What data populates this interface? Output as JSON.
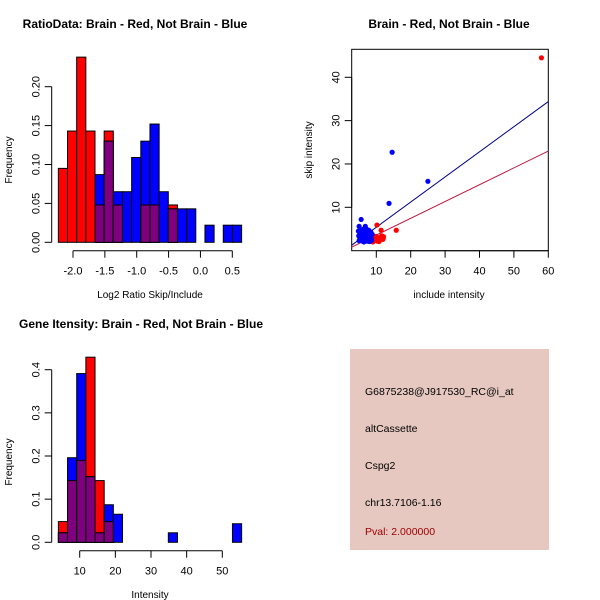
{
  "chart_data": [
    {
      "type": "bar",
      "title": "RatioData: Brain - Red, Not Brain - Blue",
      "xlabel": "Log2 Ratio Skip/Include",
      "ylabel": "Frequency",
      "bin_start": -2.23,
      "bin_width": 0.1438,
      "xticks": [
        -2.0,
        -1.5,
        -1.0,
        -0.5,
        0.0,
        0.5
      ],
      "xtick_labels": [
        "-2.0",
        "-1.5",
        "-1.0",
        "-0.5",
        "0.0",
        "0.5"
      ],
      "yticks": [
        0,
        0.05,
        0.1,
        0.15,
        0.2
      ],
      "ytick_labels": [
        "0.00",
        "0.05",
        "0.10",
        "0.15",
        "0.20"
      ],
      "ylim": [
        0,
        0.24
      ],
      "series": [
        {
          "name": "Brain",
          "color": "#ff0000",
          "values": [
            0.095,
            0.143,
            0.238,
            0.143,
            0.048,
            0.143,
            0.048,
            0,
            0,
            0.048,
            0.048,
            0,
            0.048,
            0,
            0,
            0,
            0,
            0,
            0,
            0
          ]
        },
        {
          "name": "Not Brain",
          "color": "#0000ff",
          "values": [
            0,
            0,
            0,
            0,
            0.087,
            0.13,
            0.065,
            0.065,
            0.109,
            0.13,
            0.152,
            0.065,
            0.043,
            0.043,
            0.043,
            0,
            0.022,
            0,
            0.022,
            0.022
          ]
        }
      ],
      "overlap_color": "#7f007f"
    },
    {
      "type": "scatter",
      "title": "Brain - Red, Not Brain - Blue",
      "xlabel": "include intensity",
      "ylabel": "skip intensity",
      "xlim": [
        2.8,
        60
      ],
      "ylim": [
        0,
        46.5
      ],
      "xticks": [
        10,
        20,
        30,
        40,
        50,
        60
      ],
      "xtick_labels": [
        "10",
        "20",
        "30",
        "40",
        "50",
        "60"
      ],
      "yticks": [
        10,
        20,
        30,
        40
      ],
      "ytick_labels": [
        "10",
        "20",
        "30",
        "40"
      ],
      "series": [
        {
          "name": "Brain",
          "color": "#ff0000",
          "line_color": "#c0143c",
          "fit": {
            "slope": 0.388,
            "intercept": -0.3
          },
          "points": [
            [
              58,
              44.5
            ],
            [
              15.8,
              4.7
            ],
            [
              10.2,
              5.9
            ],
            [
              11.4,
              4.7
            ],
            [
              8.5,
              2.2
            ],
            [
              9.5,
              2.6
            ],
            [
              10,
              3.3
            ],
            [
              10.5,
              2.4
            ],
            [
              11,
              2.9
            ],
            [
              11.6,
              3.4
            ],
            [
              12,
              2.8
            ],
            [
              9,
              2.0
            ],
            [
              10.8,
              2.1
            ],
            [
              8,
              2.5
            ],
            [
              9.8,
              3.0
            ],
            [
              11.3,
              3.1
            ],
            [
              12.1,
              3.2
            ],
            [
              10.3,
              2.2
            ],
            [
              9.2,
              2.3
            ],
            [
              8.8,
              2.9
            ],
            [
              11.9,
              2.6
            ]
          ]
        },
        {
          "name": "Not Brain",
          "color": "#0000ff",
          "line_color": "#00008b",
          "fit": {
            "slope": 0.58,
            "intercept": -0.4
          },
          "points": [
            [
              14.6,
              22.7
            ],
            [
              25,
              16
            ],
            [
              13.7,
              10.9
            ],
            [
              5.6,
              7.2
            ],
            [
              5,
              5.6
            ],
            [
              6.8,
              5.6
            ],
            [
              4.8,
              4.5
            ],
            [
              5.5,
              4.2
            ],
            [
              6,
              3.8
            ],
            [
              6.5,
              4.6
            ],
            [
              7,
              4.2
            ],
            [
              7.5,
              3.6
            ],
            [
              8,
              4.0
            ],
            [
              8.3,
              3.2
            ],
            [
              5.2,
              3.0
            ],
            [
              5.8,
              2.6
            ],
            [
              6.3,
              3.1
            ],
            [
              6.8,
              2.8
            ],
            [
              7.2,
              3.4
            ],
            [
              7.7,
              2.7
            ],
            [
              8.5,
              2.9
            ],
            [
              5,
              2.3
            ],
            [
              6,
              2.2
            ],
            [
              6.6,
              2.4
            ],
            [
              7.4,
              2.2
            ],
            [
              8,
              2.1
            ],
            [
              5.4,
              3.6
            ],
            [
              6.2,
              4.9
            ],
            [
              7.1,
              5.0
            ],
            [
              7.8,
              4.7
            ],
            [
              8.8,
              3.8
            ],
            [
              4.9,
              3.4
            ],
            [
              6.9,
              3.7
            ],
            [
              7.3,
              4.4
            ],
            [
              5.7,
              4.6
            ],
            [
              8.1,
              3.5
            ],
            [
              6.4,
              2.0
            ],
            [
              7.6,
              3.0
            ],
            [
              5.3,
              2.7
            ],
            [
              8.6,
              2.4
            ],
            [
              6.7,
              3.3
            ],
            [
              7.9,
              2.4
            ],
            [
              5.9,
              3.3
            ],
            [
              6.1,
              4.0
            ],
            [
              7.0,
              2.6
            ],
            [
              8.4,
              4.3
            ]
          ]
        }
      ]
    },
    {
      "type": "bar",
      "title": "Gene Itensity: Brain - Red, Not Brain - Blue",
      "xlabel": "Intensity",
      "ylabel": "Frequency",
      "bin_start": 4.02,
      "bin_width": 2.57,
      "xticks": [
        10,
        20,
        30,
        40,
        50
      ],
      "xtick_labels": [
        "10",
        "20",
        "30",
        "40",
        "50"
      ],
      "yticks": [
        0,
        0.1,
        0.2,
        0.3,
        0.4
      ],
      "ytick_labels": [
        "0.0",
        "0.1",
        "0.2",
        "0.3",
        "0.4"
      ],
      "ylim": [
        0,
        0.43
      ],
      "series": [
        {
          "name": "Brain",
          "color": "#ff0000",
          "values": [
            0.048,
            0.143,
            0.19,
            0.429,
            0.143,
            0.048,
            0,
            0,
            0,
            0,
            0,
            0,
            0,
            0,
            0,
            0,
            0,
            0,
            0,
            0
          ]
        },
        {
          "name": "Not Brain",
          "color": "#0000ff",
          "values": [
            0.022,
            0.196,
            0.391,
            0.152,
            0.022,
            0.087,
            0.065,
            0,
            0,
            0,
            0,
            0,
            0.022,
            0,
            0,
            0,
            0,
            0,
            0,
            0.043
          ]
        }
      ],
      "overlap_color": "#7f007f"
    }
  ],
  "info": {
    "probe_id": "G6875238@J917530_RC@i_at",
    "event_type": "altCassette",
    "gene": "Cspg2",
    "location": "chr13.7106-1.16",
    "pval": "Pval: 2.000000"
  }
}
